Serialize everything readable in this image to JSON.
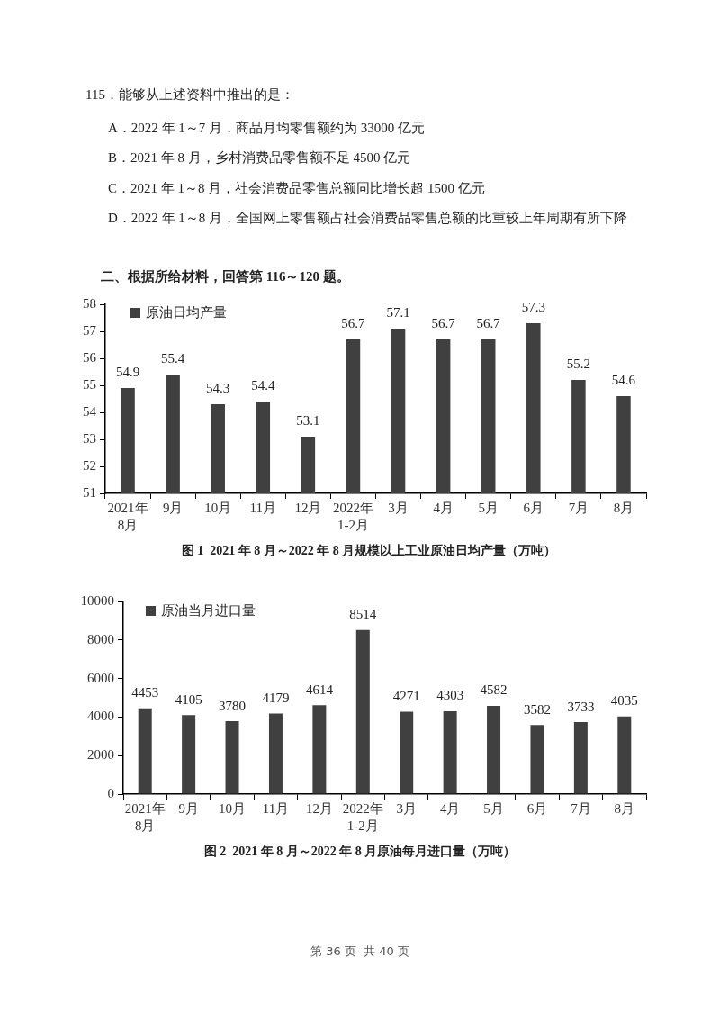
{
  "chart_data": [
    {
      "type": "other",
      "title": "115．能够从上述资料中推出的是：",
      "annotations": [
        "A．2022 年 1～7 月，商品月均零售额约为 33000 亿元",
        "B．2021 年 8 月，乡村消费品零售额不足 4500 亿元",
        "C．2021 年 1～8 月，社会消费品零售总额同比增长超 1500 亿元",
        "D．2022 年 1～8 月，全国网上零售额占社会消费品零售总额的比重较上年周期有所下降"
      ]
    },
    {
      "type": "bar",
      "subtitle": "二、根据所给材料，回答第 116～120 题。",
      "title": "图 1  2021 年 8 月～2022 年 8 月规模以上工业原油日均产量（万吨）",
      "categories": [
        "2021年\n8月",
        "9月",
        "10月",
        "11月",
        "12月",
        "2022年\n1-2月",
        "3月",
        "4月",
        "5月",
        "6月",
        "7月",
        "8月"
      ],
      "series": [
        {
          "name": "原油日均产量",
          "color": "#404040",
          "values": [
            54.9,
            55.4,
            54.3,
            54.4,
            53.1,
            56.7,
            57.1,
            56.7,
            56.7,
            57.3,
            55.2,
            54.6
          ]
        }
      ],
      "ylim": [
        51,
        58
      ],
      "yticks": [
        51,
        52,
        53,
        54,
        55,
        56,
        57,
        58
      ],
      "legend": "top left",
      "data_labels": true
    },
    {
      "type": "bar",
      "title": "图 2  2021 年 8 月～2022 年 8 月原油每月进口量（万吨）",
      "categories": [
        "2021年\n8月",
        "9月",
        "10月",
        "11月",
        "12月",
        "2022年\n1-2月",
        "3月",
        "4月",
        "5月",
        "6月",
        "7月",
        "8月"
      ],
      "series": [
        {
          "name": "原油当月进口量",
          "color": "#404040",
          "values": [
            4453,
            4105,
            3780,
            4179,
            4614,
            8514,
            4271,
            4303,
            4582,
            3582,
            3733,
            4035
          ]
        }
      ],
      "ylim": [
        0,
        10000
      ],
      "yticks": [
        0,
        2000,
        4000,
        6000,
        8000,
        10000
      ],
      "legend": "top left",
      "data_labels": true,
      "annotations": [
        "第 36 页  共 40 页"
      ]
    }
  ]
}
